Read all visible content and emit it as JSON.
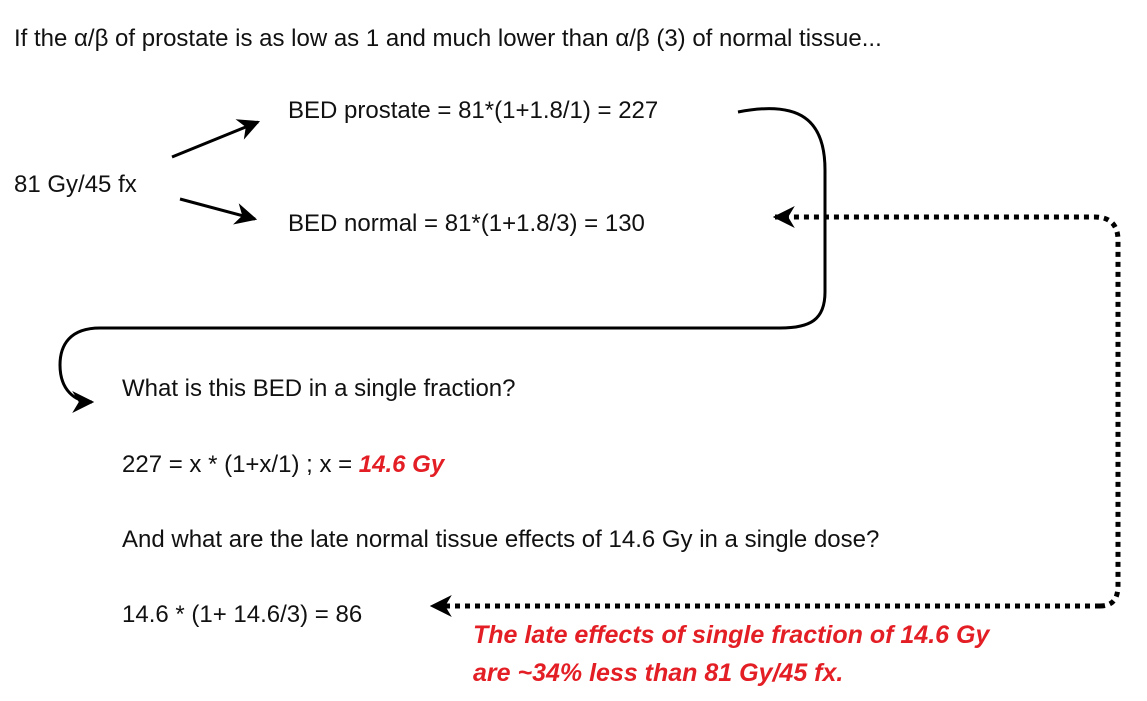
{
  "title": "If the α/β of prostate is as low as 1 and much lower than α/β (3) of normal tissue...",
  "dose": "81 Gy/45 fx",
  "bed_prostate": "BED prostate = 81*(1+1.8/1) = 227",
  "bed_normal": "BED normal = 81*(1+1.8/3) = 130",
  "question1": "What is this BED in a single fraction?",
  "equation1": {
    "text": "227 = x * (1+x/1) ; x = ",
    "answer": "14.6 Gy"
  },
  "question2": "And what are the late normal tissue effects of 14.6 Gy in a single dose?",
  "equation2": "14.6 * (1+ 14.6/3) = 86",
  "conclusion": [
    "The late effects of single fraction of 14.6 Gy",
    "are ~34% less than 81 Gy/45 fx."
  ]
}
